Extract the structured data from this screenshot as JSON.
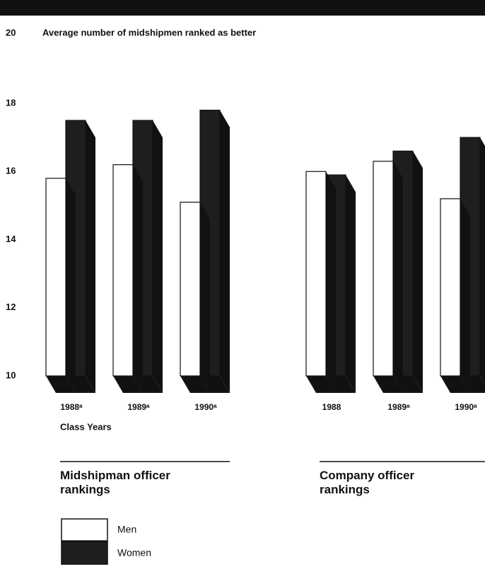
{
  "header": {
    "number": "20",
    "title": "Average number of midshipmen ranked as better"
  },
  "chart_data": [
    {
      "type": "bar",
      "title": "Midshipman officer rankings",
      "x_label": "Class Years",
      "categories": [
        "1988ᵃ",
        "1989ᵃ",
        "1990ᵃ"
      ],
      "series": [
        {
          "name": "Men",
          "color": "#ffffff",
          "values": [
            15.8,
            16.2,
            15.1
          ]
        },
        {
          "name": "Women",
          "color": "#1e1e1e",
          "values": [
            17.5,
            17.5,
            17.8
          ]
        }
      ],
      "ylim": [
        10,
        18
      ],
      "yticks": [
        10,
        12,
        14,
        16,
        18
      ]
    },
    {
      "type": "bar",
      "title": "Company officer rankings",
      "categories": [
        "1988",
        "1989ᵃ",
        "1990ᵃ"
      ],
      "series": [
        {
          "color": "#ffffff",
          "values": [
            16.0,
            16.3,
            15.2
          ]
        },
        {
          "color": "#1e1e1e",
          "values": [
            15.9,
            16.6,
            17.0
          ]
        }
      ],
      "ylim": [
        10,
        18
      ]
    }
  ]
}
